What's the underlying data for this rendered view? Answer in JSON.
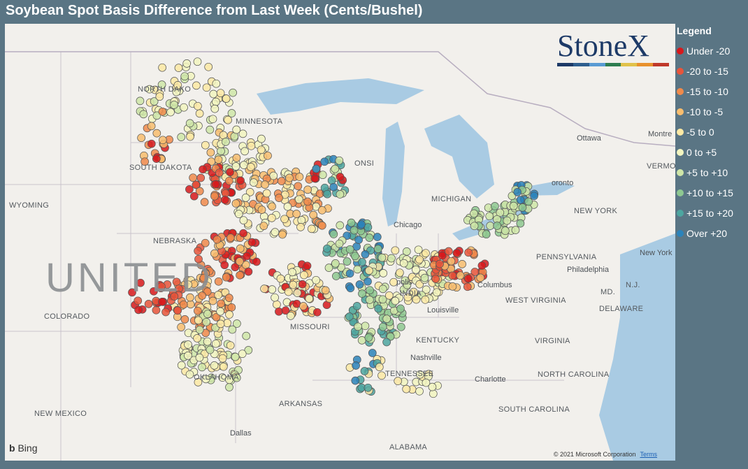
{
  "title": "Soybean Spot Basis Difference from Last Week (Cents/Bushel)",
  "legend": {
    "title": "Legend",
    "items": [
      {
        "label": "Under -20",
        "color": "#d7191c"
      },
      {
        "label": "-20 to -15",
        "color": "#e8553b"
      },
      {
        "label": "-15 to -10",
        "color": "#f08a4b"
      },
      {
        "label": "-10 to -5",
        "color": "#f8bd6e"
      },
      {
        "label": "-5 to 0",
        "color": "#fde9a4"
      },
      {
        "label": "0 to +5",
        "color": "#f2f5c0"
      },
      {
        "label": "+5 to +10",
        "color": "#cfe6a8"
      },
      {
        "label": "+10 to +15",
        "color": "#8ec891"
      },
      {
        "label": "+15 to +20",
        "color": "#4da6a0"
      },
      {
        "label": "Over +20",
        "color": "#2b83ba"
      }
    ]
  },
  "logo": {
    "text": "StoneX"
  },
  "map_labels": {
    "states": {
      "north_dakota": "NORTH DAKO",
      "minnesota": "MINNESOTA",
      "south_dakota": "SOUTH DAKOTA",
      "wyoming": "WYOMING",
      "nebraska": "NEBRASKA",
      "colorado": "COLORADO",
      "missouri": "MISSOURI",
      "kentucky": "KENTUCKY",
      "tennessee": "TENNESSEE",
      "oklahoma": "OKLAHOMA",
      "arkansas": "ARKANSAS",
      "new_mexico": "NEW MEXICO",
      "alabama": "ALABAMA",
      "michigan": "MICHIGAN",
      "new_york": "NEW YORK",
      "pennsylvania": "PENNSYLVANIA",
      "west_virginia": "WEST VIRGINIA",
      "virginia": "VIRGINIA",
      "north_carolina": "NORTH CAROLINA",
      "south_carolina": "SOUTH CAROLINA",
      "indiana": "INDIA",
      "vermont": "VERMON",
      "md": "MD.",
      "nj": "N.J.",
      "delaware": "DELAWARE",
      "wisconsin": "ONSI"
    },
    "cities": {
      "ottawa": "Ottawa",
      "montreal": "Montre",
      "toronto": "oronto",
      "chicago": "Chicago",
      "columbus": "Columbus",
      "louisville": "Louisville",
      "nashville": "Nashville",
      "charlotte": "Charlotte",
      "philadelphia": "Philadelphia",
      "new_york_city": "New York",
      "dallas": "Dallas",
      "indianapolis": "polis"
    },
    "country": "UNITED"
  },
  "attribution": {
    "bing": "Bing",
    "copyright": "© 2021 Microsoft Corporation",
    "terms": "Terms"
  }
}
